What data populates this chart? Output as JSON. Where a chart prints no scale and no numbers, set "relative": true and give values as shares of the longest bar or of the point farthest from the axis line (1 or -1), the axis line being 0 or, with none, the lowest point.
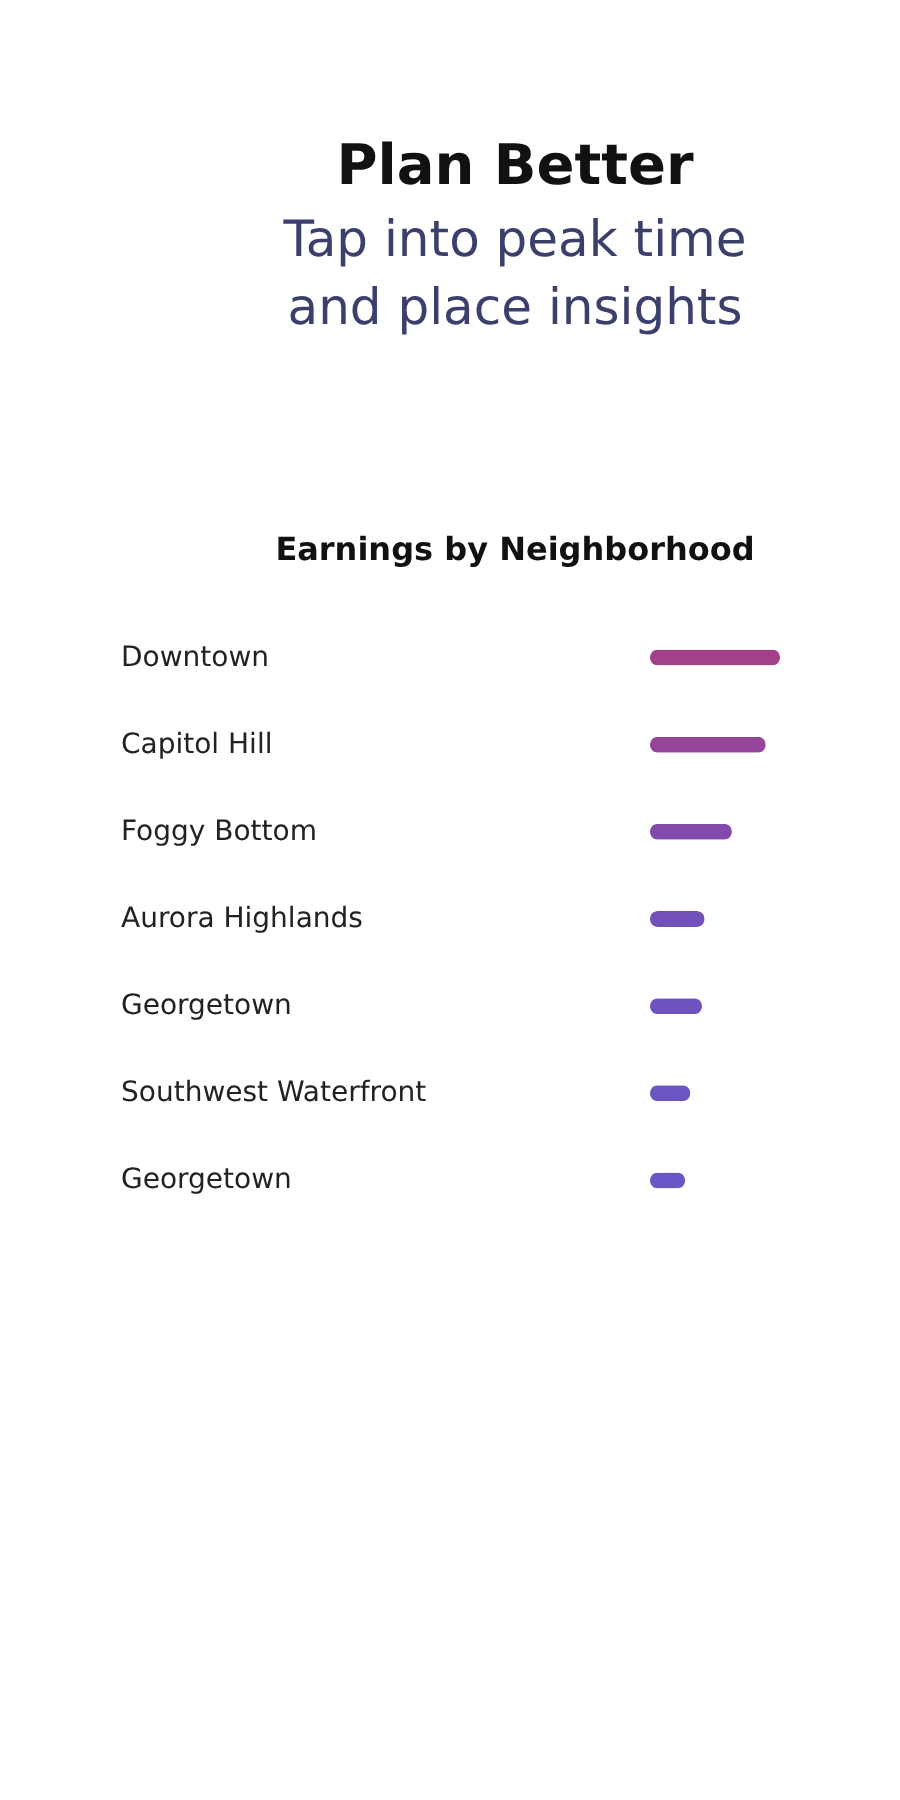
{
  "chart_data": {
    "type": "bar",
    "orientation": "horizontal",
    "relative": true,
    "title": "Earnings by Neighborhood",
    "annotations": [
      "Plan Better",
      "Tap into peak time\nand place insights"
    ],
    "categories": [
      "Downtown",
      "Capitol Hill",
      "Foggy Bottom",
      "Aurora Highlands",
      "Georgetown",
      "Southwest Waterfront",
      "Georgetown"
    ],
    "values": [
      1.0,
      0.89,
      0.63,
      0.42,
      0.4,
      0.31,
      0.27
    ],
    "colors": [
      "#a2418a",
      "#94459a",
      "#824aaa",
      "#7150ba",
      "#6e52be",
      "#6b55c3",
      "#6857c6"
    ],
    "legend": false
  }
}
